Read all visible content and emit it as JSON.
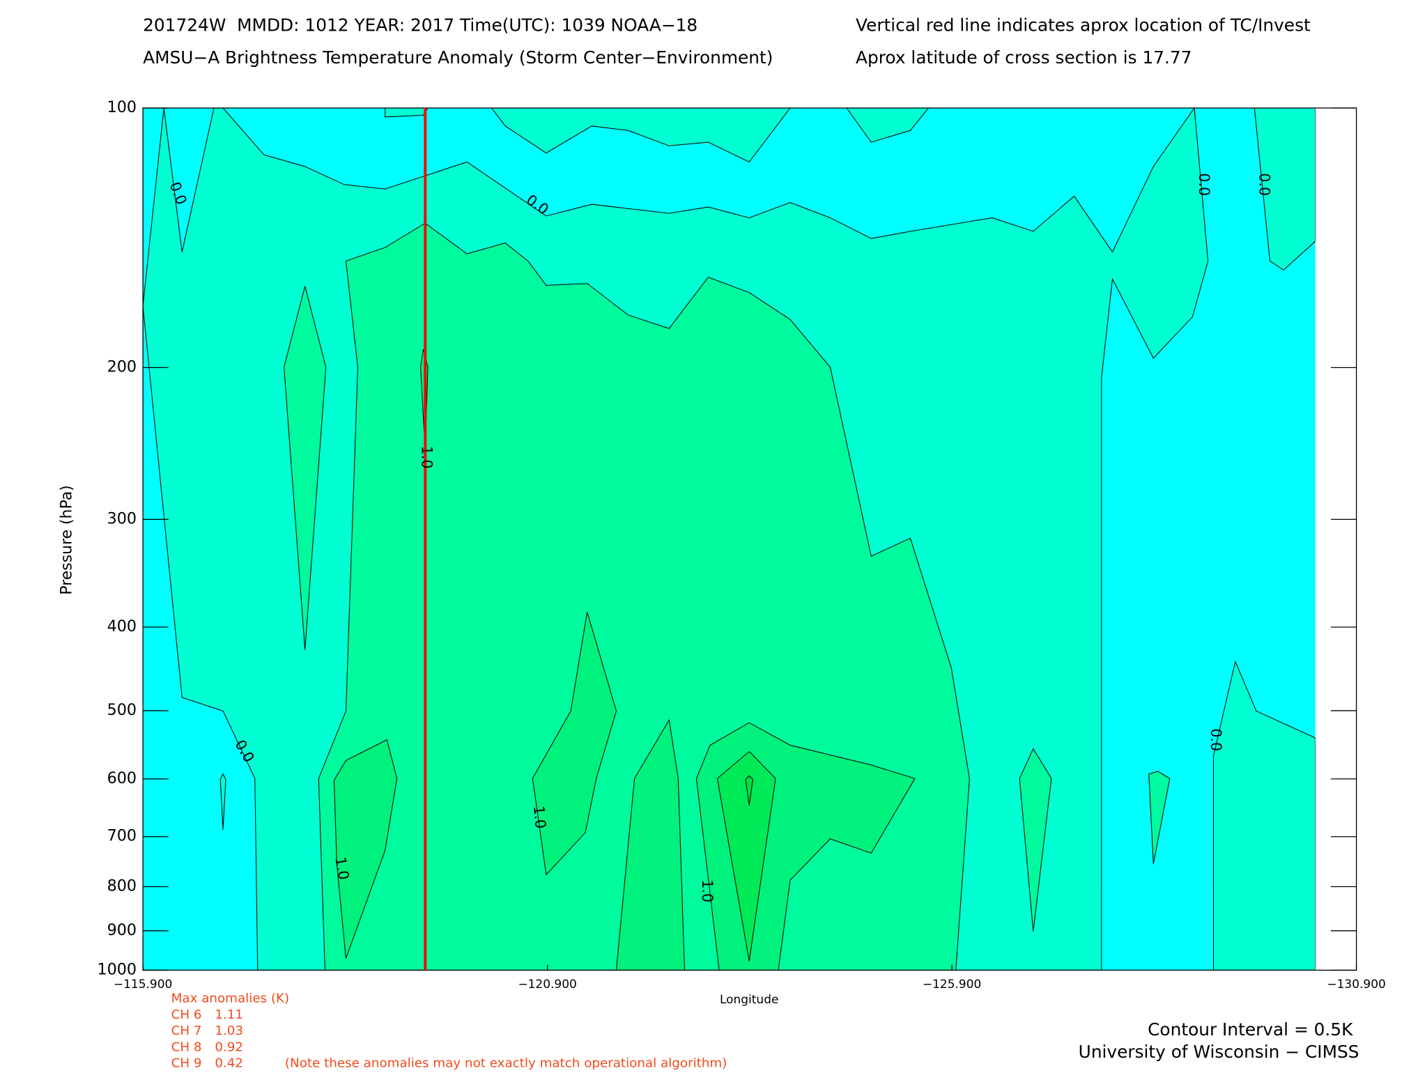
{
  "chart_data": {
    "type": "contour",
    "title_left": "201724W  MMDD: 1012 YEAR: 2017 Time(UTC): 1039 NOAA−18",
    "title_right": "Vertical red line indicates aprox location of TC/Invest",
    "subtitle_left": "AMSU−A Brightness Temperature Anomaly (Storm Center−Environment)",
    "subtitle_right": "Aprox latitude of cross section is 17.77",
    "x_label": "Longitude",
    "y_label": "Pressure (hPa)",
    "xlim": [
      -115.9,
      -130.9
    ],
    "xticks": [
      {
        "value": -115.9,
        "label": "−115.900"
      },
      {
        "value": -120.9,
        "label": "−120.900"
      },
      {
        "value": -125.9,
        "label": "−125.900"
      },
      {
        "value": -130.9,
        "label": "−130.900"
      }
    ],
    "ylim": [
      100,
      1000
    ],
    "y_scale": "log",
    "yticks": [
      100,
      200,
      300,
      400,
      500,
      600,
      700,
      800,
      900,
      1000
    ],
    "storm_longitude": -119.39,
    "storm_line_color": "#ff0000",
    "contour_labels": [
      "0.0",
      "0.0",
      "0.0",
      "0.0",
      "0.0",
      "0.0",
      "1.0",
      "1.0",
      "1.0",
      "1.0"
    ],
    "max_anomalies_title": "Max anomalies (K)",
    "max_anomalies": [
      {
        "channel": "CH 6",
        "value": 1.11
      },
      {
        "channel": "CH 7",
        "value": 1.03
      },
      {
        "channel": "CH 8",
        "value": 0.92
      },
      {
        "channel": "CH 9",
        "value": 0.42
      }
    ],
    "anomaly_note": "(Note these anomalies may not exactly match operational algorithm)",
    "contour_interval": "Contour Interval = 0.5K",
    "credit": "University of Wisconsin − CIMSS"
  }
}
